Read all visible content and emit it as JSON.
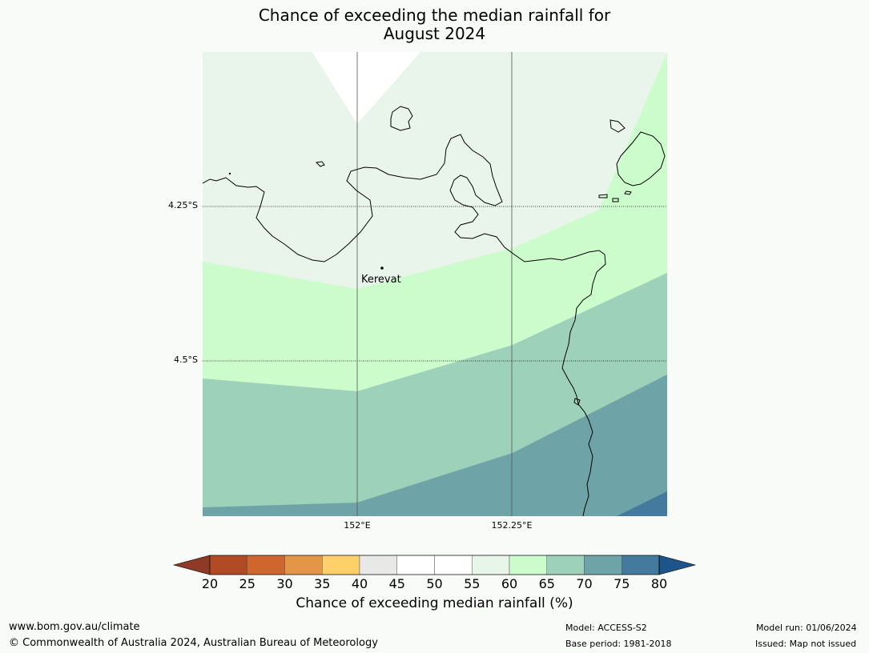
{
  "title_line1": "Chance of exceeding the median rainfall for",
  "title_line2": "August 2024",
  "map": {
    "lat_labels": [
      "4.25°S",
      "4.5°S"
    ],
    "lon_labels": [
      "152°E",
      "152.25°E"
    ],
    "place_label": "Kerevat"
  },
  "colorbar": {
    "ticks": [
      "20",
      "25",
      "30",
      "35",
      "40",
      "45",
      "50",
      "55",
      "60",
      "65",
      "70",
      "75",
      "80"
    ],
    "colors": [
      "#8e3a26",
      "#b04b26",
      "#cf6630",
      "#e49545",
      "#fdd06a",
      "#e8e8e6",
      "#ffffff",
      "#ffffff",
      "#e8f5e9",
      "#ccfccc",
      "#9dd1ba",
      "#6ea4a8",
      "#437a9d",
      "#1d5489"
    ],
    "label": "Chance of exceeding median rainfall (%)"
  },
  "footer": {
    "website": "www.bom.gov.au/climate",
    "copyright": "© Commonwealth of Australia 2024, Australian Bureau of Meteorology",
    "model": "Model: ACCESS-S2",
    "base_period": "Base period: 1981-2018",
    "model_run": "Model run: 01/06/2024",
    "issued": "Issued: Map not issued"
  }
}
